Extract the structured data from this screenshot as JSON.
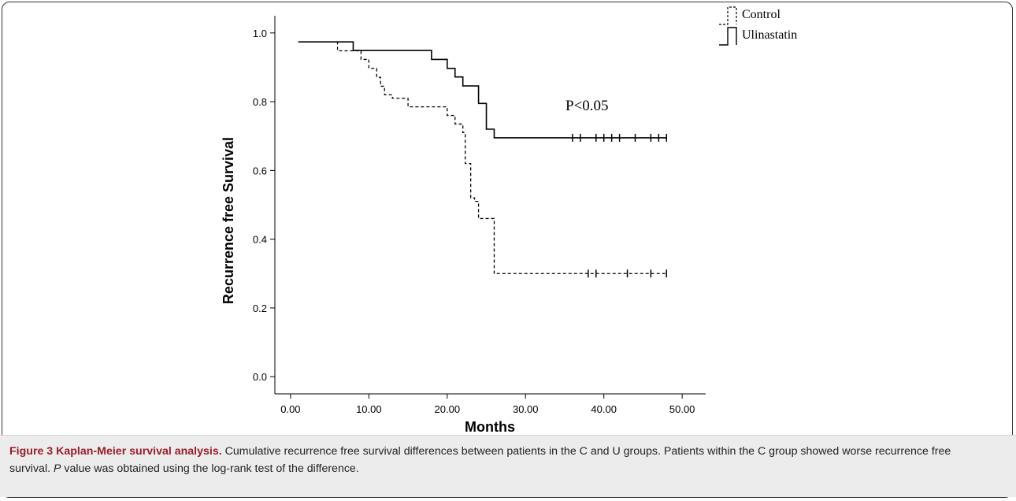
{
  "chart_data": {
    "type": "line",
    "subtype": "kaplan-meier step",
    "xlabel": "Months",
    "ylabel": "Recurrence free Survival",
    "xlim": [
      -2,
      53
    ],
    "ylim": [
      -0.05,
      1.05
    ],
    "xticks": [
      0,
      10,
      20,
      30,
      40,
      50
    ],
    "xtick_labels": [
      "0.00",
      "10.00",
      "20.00",
      "30.00",
      "40.00",
      "50.00"
    ],
    "yticks": [
      0,
      0.2,
      0.4,
      0.6,
      0.8,
      1.0
    ],
    "ytick_labels": [
      "0.0",
      "0.2",
      "0.4",
      "0.6",
      "0.8",
      "1.0"
    ],
    "grid": false,
    "legend_position": "top-right",
    "annotation": "P<0.05",
    "series": [
      {
        "name": "Control",
        "line_style": "dashed",
        "color": "#000000",
        "steps": [
          [
            1,
            0.974
          ],
          [
            6,
            0.948
          ],
          [
            9,
            0.923
          ],
          [
            10,
            0.897
          ],
          [
            11,
            0.871
          ],
          [
            11.5,
            0.845
          ],
          [
            12,
            0.82
          ],
          [
            13,
            0.81
          ],
          [
            15,
            0.785
          ],
          [
            20,
            0.76
          ],
          [
            21,
            0.735
          ],
          [
            22,
            0.71
          ],
          [
            22.3,
            0.62
          ],
          [
            23,
            0.52
          ],
          [
            23.5,
            0.51
          ],
          [
            24,
            0.46
          ],
          [
            26,
            0.3
          ],
          [
            48,
            0.3
          ]
        ],
        "censored": [
          38,
          39,
          43,
          46,
          48
        ]
      },
      {
        "name": "Ulinastatin",
        "line_style": "solid",
        "color": "#000000",
        "steps": [
          [
            1,
            0.974
          ],
          [
            8,
            0.949
          ],
          [
            18,
            0.923
          ],
          [
            20,
            0.897
          ],
          [
            21,
            0.872
          ],
          [
            22,
            0.846
          ],
          [
            24,
            0.795
          ],
          [
            25,
            0.72
          ],
          [
            26,
            0.695
          ],
          [
            48,
            0.695
          ]
        ],
        "censored": [
          36,
          37,
          39,
          40,
          41,
          42,
          44,
          46,
          47,
          48
        ]
      }
    ]
  },
  "caption": {
    "label": "Figure 3 Kaplan-Meier survival analysis.",
    "text_before_italic": " Cumulative recurrence free survival differences between patients in the C and U groups. Patients within the C group showed worse recurrence free survival. ",
    "italic": "P",
    "text_after_italic": " value was obtained using the log-rank test of the difference."
  }
}
